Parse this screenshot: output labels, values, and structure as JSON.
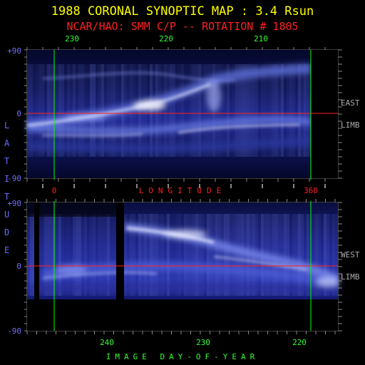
{
  "title": "1988 CORONAL SYNOPTIC MAP : 3.4 Rsun",
  "subtitle": "NCAR/HAO: SMM C/P -- ROTATION # 1805",
  "colors": {
    "title": "#ffff00",
    "subtitle": "#ff2020",
    "tick_green": "#33ff33",
    "latitude_blue": "#6868ff",
    "equator": "#ff2020",
    "marker": "#00ff00",
    "side_labels": "#aaaaaa",
    "plot_bg": "#070a3a",
    "feature": "#c8d0ff"
  },
  "top_axis": {
    "ticks": [
      "230",
      "220",
      "210"
    ]
  },
  "middle_axis": {
    "left": "0",
    "label": "LONGITUDE",
    "right": "360"
  },
  "bottom_axis": {
    "ticks": [
      "240",
      "230",
      "220"
    ],
    "label": "IMAGE DAY-OF-YEAR"
  },
  "y_axis": {
    "label": "LATITUDE",
    "ticks": [
      "+90",
      "0",
      "-90"
    ]
  },
  "panel_labels": {
    "east_1": "EAST",
    "east_2": "LIMB",
    "west_1": "WEST",
    "west_2": "LIMB"
  },
  "chart_data": [
    {
      "type": "heatmap",
      "name": "EAST LIMB",
      "xlabel": "LONGITUDE",
      "xlim": [
        0,
        360
      ],
      "ylim": [
        -90,
        90
      ],
      "ylabel": "LATITUDE",
      "equator_line": 0,
      "marker_lines_x": [
        0,
        360
      ],
      "top_ticks": [
        230,
        220,
        210
      ]
    },
    {
      "type": "heatmap",
      "name": "WEST LIMB",
      "xlabel": "IMAGE DAY-OF-YEAR",
      "ylim": [
        -90,
        90
      ],
      "ylabel": "LATITUDE",
      "equator_line": 0,
      "bottom_ticks": [
        240,
        230,
        220
      ]
    }
  ]
}
